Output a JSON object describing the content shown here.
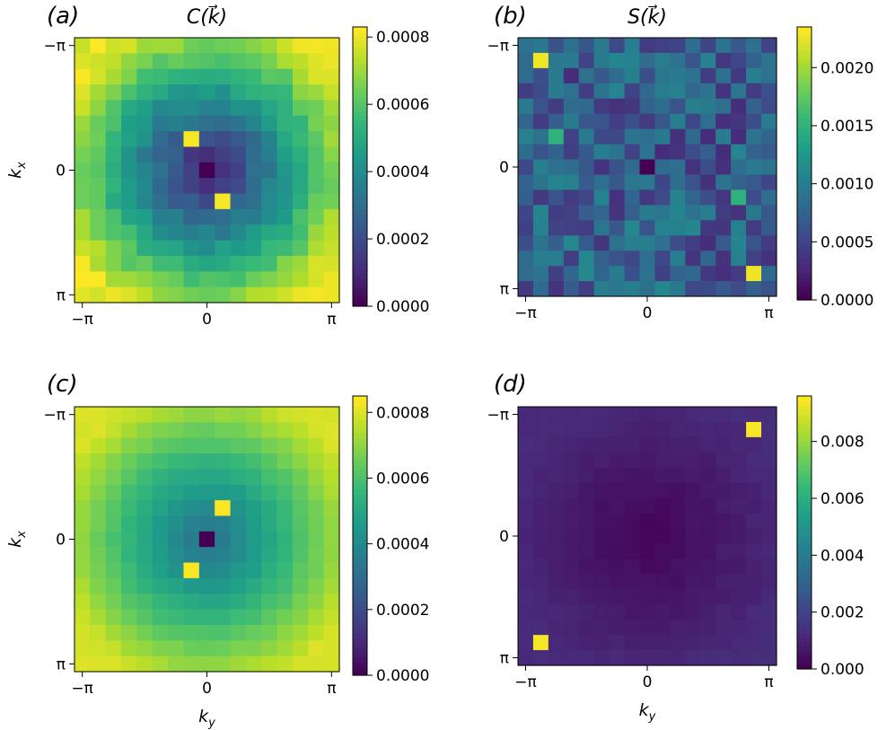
{
  "figure": {
    "colormap": "viridis",
    "viridis_stops": [
      "#440154",
      "#482878",
      "#3e4989",
      "#31688e",
      "#26828e",
      "#1f9e89",
      "#35b779",
      "#6ece58",
      "#b5de2b",
      "#fde725"
    ],
    "axis_tick_labels": [
      "−π",
      "0",
      "π"
    ],
    "label_kx_base": "k",
    "label_kx_sub": "x",
    "label_ky_base": "k",
    "label_ky_sub": "y",
    "title_C": "C(k⃗)",
    "title_S": "S(k⃗)"
  },
  "chart_data": [
    {
      "type": "heatmap",
      "panel": "(a)",
      "title": "C(k⃗)",
      "xlabel": "",
      "ylabel": "k_x",
      "x_ticks": [
        "−π",
        "0",
        "π"
      ],
      "y_ticks": [
        "−π",
        "0",
        "π"
      ],
      "grid_size": 17,
      "field": "radial",
      "center": 5e-05,
      "edge": 0.0008,
      "noise": 4e-05,
      "highlight_cells": [
        [
          0,
          8,
          0.0
        ],
        [
          -2,
          -1,
          0.00082
        ],
        [
          2,
          1,
          0.00082
        ]
      ],
      "clim": [
        0,
        0.00083
      ],
      "colorbar_ticks": [
        "0.0000",
        "0.0002",
        "0.0004",
        "0.0006",
        "0.0008"
      ],
      "colorbar_values": [
        0,
        0.0002,
        0.0004,
        0.0006,
        0.0008
      ]
    },
    {
      "type": "heatmap",
      "panel": "(b)",
      "title": "S(k⃗)",
      "xlabel": "",
      "ylabel": "",
      "x_ticks": [
        "−π",
        "0",
        "π"
      ],
      "y_ticks": [
        "−π",
        "0",
        "π"
      ],
      "grid_size": 17,
      "field": "random",
      "base": 0.0007,
      "noise": 0.0004,
      "highlight_cells": [
        [
          0,
          8,
          0.0
        ],
        [
          -7,
          -7,
          0.0023
        ],
        [
          7,
          7,
          0.0023
        ],
        [
          -2,
          -6,
          0.0015
        ],
        [
          2,
          6,
          0.0015
        ]
      ],
      "clim": [
        0,
        0.00235
      ],
      "colorbar_ticks": [
        "0.0000",
        "0.0005",
        "0.0010",
        "0.0015",
        "0.0020"
      ],
      "colorbar_values": [
        0,
        0.0005,
        0.001,
        0.0015,
        0.002
      ]
    },
    {
      "type": "heatmap",
      "panel": "(c)",
      "title": "",
      "xlabel": "k_y",
      "ylabel": "k_x",
      "x_ticks": [
        "−π",
        "0",
        "π"
      ],
      "y_ticks": [
        "−π",
        "0",
        "π"
      ],
      "grid_size": 17,
      "field": "radial",
      "center": 0.0003,
      "edge": 0.0008,
      "noise": 1e-05,
      "highlight_cells": [
        [
          0,
          8,
          0.0
        ],
        [
          -2,
          1,
          0.00085
        ],
        [
          2,
          -1,
          0.00085
        ]
      ],
      "clim": [
        0,
        0.00085
      ],
      "colorbar_ticks": [
        "0.0000",
        "0.0002",
        "0.0004",
        "0.0006",
        "0.0008"
      ],
      "colorbar_values": [
        0,
        0.0002,
        0.0004,
        0.0006,
        0.0008
      ]
    },
    {
      "type": "heatmap",
      "panel": "(d)",
      "title": "",
      "xlabel": "k_y",
      "ylabel": "",
      "x_ticks": [
        "−π",
        "0",
        "π"
      ],
      "y_ticks": [
        "−π",
        "0",
        "π"
      ],
      "grid_size": 17,
      "field": "radial",
      "center": 0.0001,
      "edge": 0.0012,
      "noise": 0.0001,
      "highlight_cells": [
        [
          -7,
          7,
          0.0095
        ],
        [
          7,
          -7,
          0.0095
        ]
      ],
      "clim": [
        0,
        0.0096
      ],
      "colorbar_ticks": [
        "0.000",
        "0.002",
        "0.004",
        "0.006",
        "0.008"
      ],
      "colorbar_values": [
        0,
        0.002,
        0.004,
        0.006,
        0.008
      ]
    }
  ]
}
